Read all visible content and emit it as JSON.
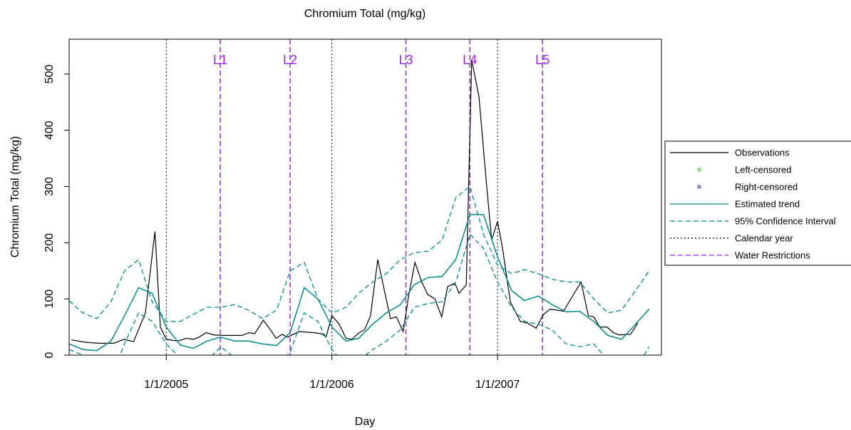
{
  "chart_data": {
    "type": "line",
    "title": "Chromium Total (mg/kg)",
    "x_label": "Day",
    "y_label": "Chromium Total (mg/kg)",
    "xlim": [
      "2004-06-01",
      "2007-12-28"
    ],
    "xticks": [
      {
        "value": "2005-01-01",
        "label": "1/1/2005"
      },
      {
        "value": "2006-01-01",
        "label": "1/1/2006"
      },
      {
        "value": "2007-01-01",
        "label": "1/1/2007"
      }
    ],
    "ylim": [
      0,
      562
    ],
    "yticks": [
      0,
      100,
      200,
      300,
      400,
      500
    ],
    "series": [
      {
        "name": "Observations",
        "color": "#000000",
        "style": "solid",
        "x": [
          "2004-06-06",
          "2004-07-06",
          "2004-08-06",
          "2004-09-07",
          "2004-09-30",
          "2004-10-21",
          "2004-11-16",
          "2004-12-07",
          "2004-12-19",
          "2005-01-01",
          "2005-01-26",
          "2005-02-14",
          "2005-03-02",
          "2005-03-14",
          "2005-03-30",
          "2005-04-15",
          "2005-05-08",
          "2005-06-17",
          "2005-07-02",
          "2005-07-15",
          "2005-08-03",
          "2005-08-16",
          "2005-08-31",
          "2005-09-13",
          "2005-09-25",
          "2005-10-21",
          "2005-11-21",
          "2005-12-10",
          "2005-12-19",
          "2006-01-01",
          "2006-01-17",
          "2006-02-01",
          "2006-02-14",
          "2006-03-02",
          "2006-03-14",
          "2006-03-27",
          "2006-04-12",
          "2006-05-10",
          "2006-05-23",
          "2006-06-07",
          "2006-06-20",
          "2006-07-03",
          "2006-07-18",
          "2006-07-31",
          "2006-08-16",
          "2006-08-31",
          "2006-09-13",
          "2006-09-29",
          "2006-10-08",
          "2006-10-24",
          "2006-11-05",
          "2006-11-21",
          "2006-12-07",
          "2006-12-19",
          "2007-01-01",
          "2007-01-12",
          "2007-01-29",
          "2007-02-20",
          "2007-03-08",
          "2007-03-27",
          "2007-04-12",
          "2007-04-27",
          "2007-05-26",
          "2007-07-04",
          "2007-07-20",
          "2007-08-01",
          "2007-08-14",
          "2007-08-30",
          "2007-09-13",
          "2007-09-26",
          "2007-10-21",
          "2007-11-06"
        ],
        "values": [
          27,
          23,
          21,
          21,
          28,
          24,
          75,
          220,
          50,
          28,
          25,
          30,
          28,
          32,
          40,
          36,
          35,
          35,
          40,
          38,
          62,
          48,
          30,
          37,
          32,
          42,
          40,
          38,
          32,
          70,
          55,
          30,
          28,
          40,
          45,
          70,
          170,
          65,
          68,
          42,
          110,
          165,
          130,
          108,
          100,
          68,
          122,
          128,
          110,
          125,
          525,
          460,
          310,
          205,
          238,
          190,
          95,
          60,
          57,
          48,
          72,
          82,
          78,
          130,
          70,
          68,
          50,
          50,
          40,
          36,
          37,
          57
        ]
      },
      {
        "name": "Left-censored",
        "color": "#00cc00",
        "style": "point",
        "x": [],
        "values": []
      },
      {
        "name": "Right-censored",
        "color": "#0000cc",
        "style": "point",
        "x": [],
        "values": []
      },
      {
        "name": "Estimated trend",
        "color": "#008b8b",
        "style": "solid",
        "x": [
          "2004-06-01",
          "2004-07-01",
          "2004-08-01",
          "2004-09-01",
          "2004-10-01",
          "2004-11-01",
          "2004-12-01",
          "2005-01-01",
          "2005-02-01",
          "2005-03-01",
          "2005-04-01",
          "2005-05-01",
          "2005-06-01",
          "2005-07-01",
          "2005-08-01",
          "2005-09-01",
          "2005-10-01",
          "2005-11-01",
          "2005-12-01",
          "2006-01-01",
          "2006-02-01",
          "2006-03-01",
          "2006-04-01",
          "2006-05-01",
          "2006-06-01",
          "2006-07-01",
          "2006-08-01",
          "2006-09-01",
          "2006-10-01",
          "2006-11-01",
          "2006-12-01",
          "2007-01-01",
          "2007-02-01",
          "2007-03-01",
          "2007-04-01",
          "2007-05-01",
          "2007-06-01",
          "2007-07-01",
          "2007-08-01",
          "2007-09-01",
          "2007-10-01",
          "2007-11-01",
          "2007-12-01"
        ],
        "values": [
          20,
          10,
          8,
          25,
          70,
          120,
          110,
          50,
          18,
          12,
          25,
          32,
          25,
          25,
          20,
          17,
          40,
          120,
          100,
          50,
          25,
          30,
          55,
          75,
          90,
          125,
          138,
          140,
          170,
          250,
          250,
          175,
          115,
          97,
          105,
          90,
          77,
          78,
          60,
          35,
          28,
          55,
          82
        ]
      },
      {
        "name": "95% Confidence Interval",
        "color": "#008b8b",
        "style": "dashed",
        "x": [
          "2004-06-01",
          "2004-07-01",
          "2004-08-01",
          "2004-09-01",
          "2004-10-01",
          "2004-11-01",
          "2004-12-01",
          "2005-01-01",
          "2005-02-01",
          "2005-03-01",
          "2005-04-01",
          "2005-05-01",
          "2005-06-01",
          "2005-07-01",
          "2005-08-01",
          "2005-09-01",
          "2005-10-01",
          "2005-11-01",
          "2005-12-01",
          "2006-01-01",
          "2006-02-01",
          "2006-03-01",
          "2006-04-01",
          "2006-05-01",
          "2006-06-01",
          "2006-07-01",
          "2006-08-01",
          "2006-09-01",
          "2006-10-01",
          "2006-11-01",
          "2006-12-01",
          "2007-01-01",
          "2007-02-01",
          "2007-03-01",
          "2007-04-01",
          "2007-05-01",
          "2007-06-01",
          "2007-07-01",
          "2007-08-01",
          "2007-09-01",
          "2007-10-01",
          "2007-11-01",
          "2007-12-01"
        ],
        "upper": [
          97,
          75,
          65,
          95,
          150,
          170,
          95,
          60,
          60,
          72,
          85,
          85,
          90,
          80,
          65,
          80,
          150,
          165,
          100,
          75,
          85,
          110,
          130,
          145,
          170,
          182,
          185,
          205,
          280,
          300,
          215,
          160,
          145,
          152,
          145,
          135,
          130,
          130,
          100,
          75,
          80,
          115,
          150
        ],
        "lower": [
          10,
          0,
          -30,
          -40,
          20,
          75,
          60,
          20,
          -5,
          -30,
          -10,
          15,
          -5,
          -10,
          -15,
          -20,
          5,
          75,
          60,
          10,
          -20,
          -10,
          10,
          25,
          45,
          85,
          92,
          95,
          130,
          215,
          190,
          130,
          85,
          60,
          55,
          45,
          20,
          15,
          20,
          -10,
          -30,
          -25,
          15
        ]
      }
    ],
    "calendar_year": {
      "name": "Calendar year",
      "color": "#000000",
      "style": "dotted"
    },
    "water_restrictions": {
      "name": "Water Restrictions",
      "color": "#a020f0",
      "style": "dashed",
      "x": [
        "2005-04-30",
        "2005-10-01",
        "2006-06-13",
        "2006-11-01",
        "2007-04-10"
      ],
      "labels": [
        "L1",
        "L2",
        "L3",
        "L4",
        "L5"
      ]
    }
  }
}
